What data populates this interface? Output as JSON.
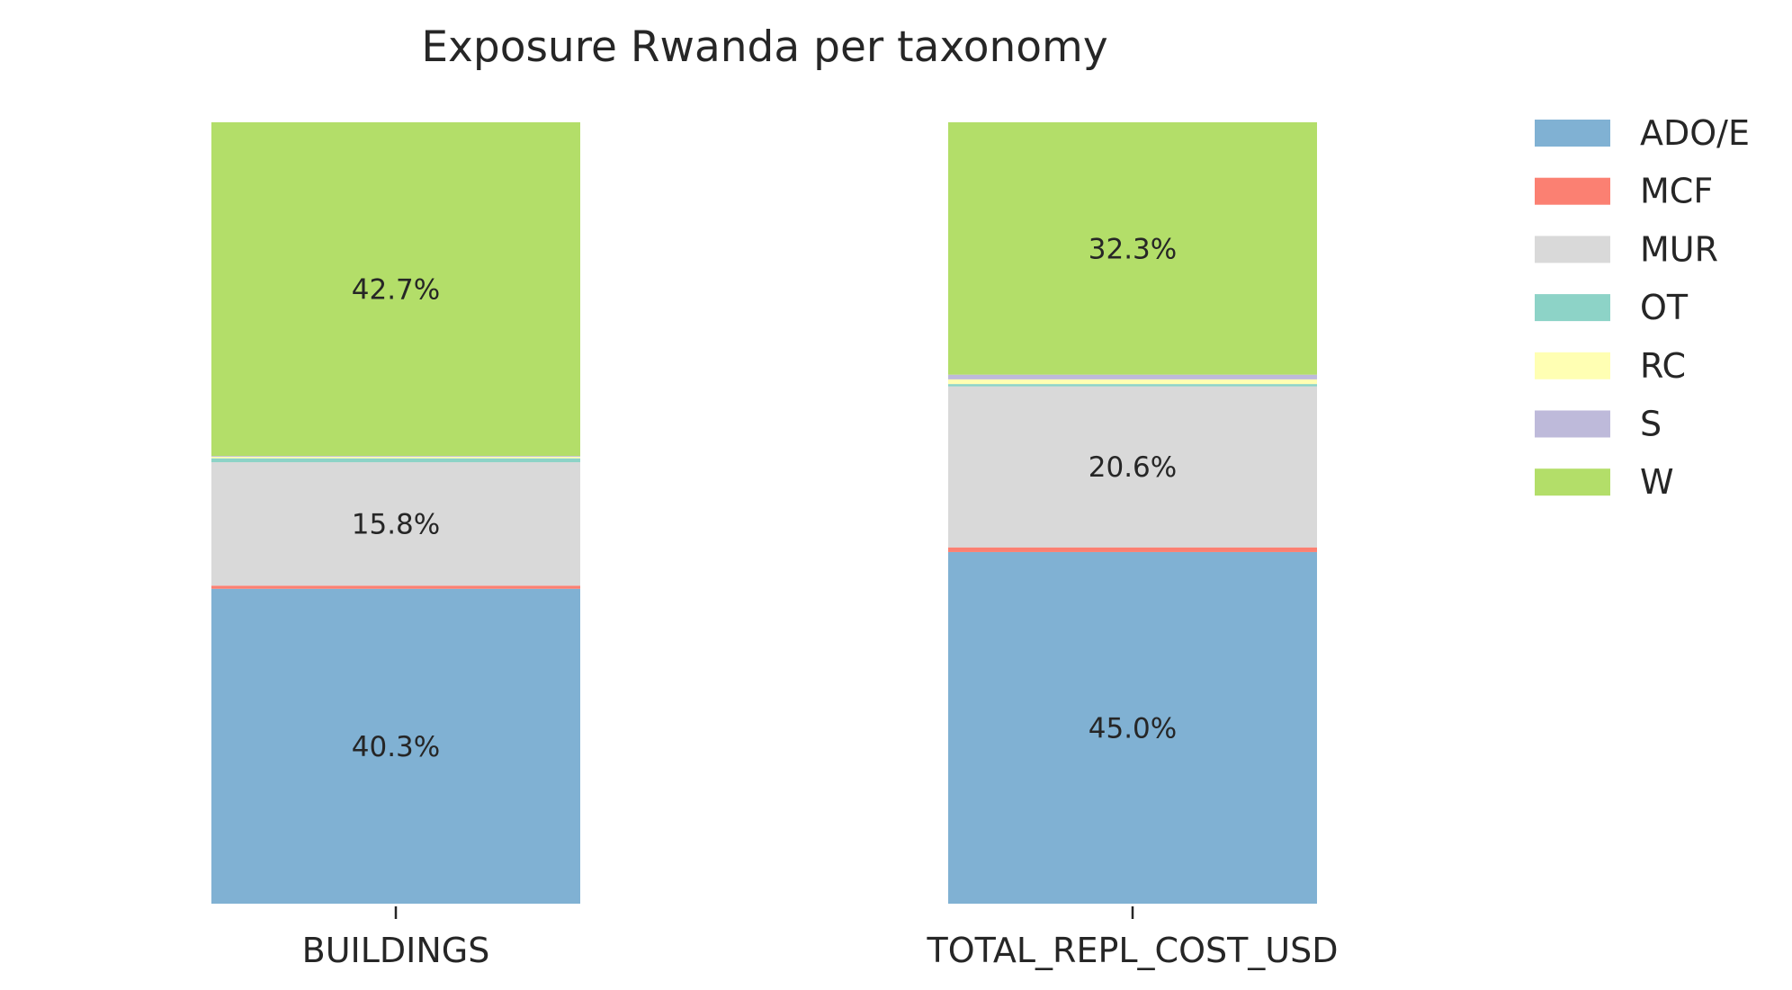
{
  "chart_data": {
    "type": "bar",
    "stacked": true,
    "normalized": true,
    "title": "Exposure Rwanda per taxonomy",
    "xlabel": "",
    "ylabel": "",
    "ylim": [
      0,
      100
    ],
    "grid": false,
    "legend_position": "top-right",
    "categories": [
      "BUILDINGS",
      "TOTAL_REPL_COST_USD"
    ],
    "series": [
      {
        "name": "ADO/E",
        "color": "#80b1d3",
        "values": [
          40.3,
          45.0
        ],
        "labels": [
          "40.3%",
          "45.0%"
        ]
      },
      {
        "name": "MCF",
        "color": "#fb8072",
        "values": [
          0.4,
          0.6
        ],
        "labels": [
          "",
          ""
        ]
      },
      {
        "name": "MUR",
        "color": "#d9d9d9",
        "values": [
          15.8,
          20.6
        ],
        "labels": [
          "15.8%",
          "20.6%"
        ]
      },
      {
        "name": "OT",
        "color": "#8dd3c7",
        "values": [
          0.5,
          0.3
        ],
        "labels": [
          "",
          ""
        ]
      },
      {
        "name": "RC",
        "color": "#ffffb3",
        "values": [
          0.2,
          0.6
        ],
        "labels": [
          "",
          ""
        ]
      },
      {
        "name": "S",
        "color": "#bebada",
        "values": [
          0.1,
          0.6
        ],
        "labels": [
          "",
          ""
        ]
      },
      {
        "name": "W",
        "color": "#b3de69",
        "values": [
          42.7,
          32.3
        ],
        "labels": [
          "42.7%",
          "32.3%"
        ]
      }
    ]
  }
}
